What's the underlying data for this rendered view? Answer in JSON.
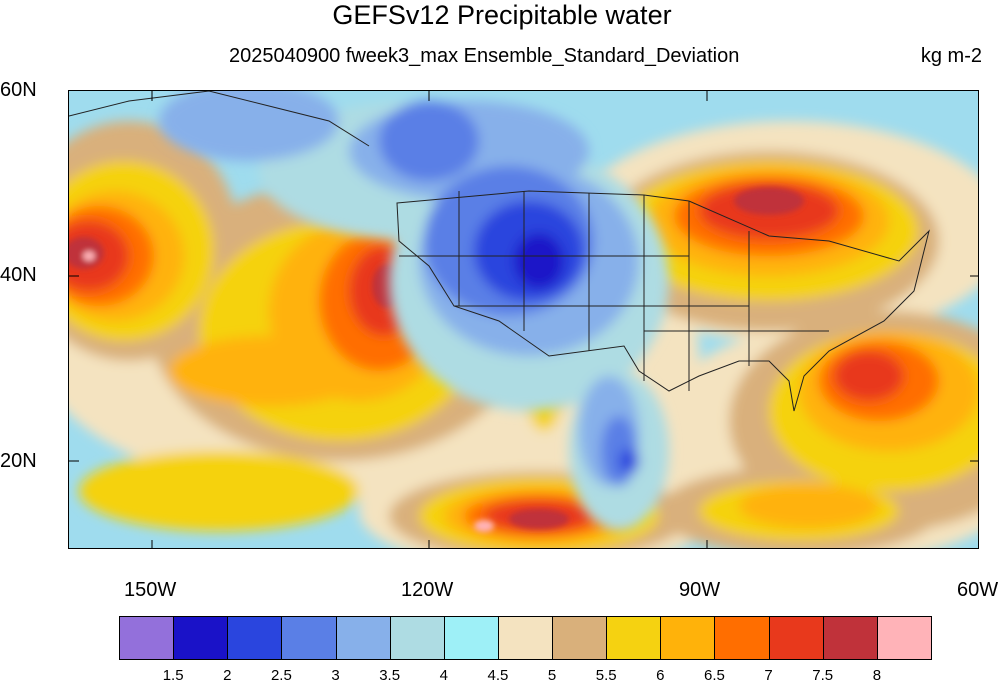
{
  "title": "GEFSv12 Precipitable water",
  "subtitle": "2025040900 fweek3_max Ensemble_Standard_Deviation",
  "units": "kg m-2",
  "lat_labels": [
    "60N",
    "40N",
    "20N"
  ],
  "lon_labels": [
    "150W",
    "120W",
    "90W",
    "60W"
  ],
  "colorbar": {
    "colors": [
      "#9370db",
      "#1a12c8",
      "#2a45de",
      "#5a7fe6",
      "#87b0ea",
      "#aedce3",
      "#9ef0f7",
      "#f4e3c0",
      "#d9b07b",
      "#f5d211",
      "#ffb20a",
      "#ff6e00",
      "#e8391c",
      "#c0323a",
      "#ffb3b8"
    ],
    "labels": [
      "1.5",
      "2",
      "2.5",
      "3",
      "3.5",
      "4",
      "4.5",
      "5",
      "5.5",
      "6",
      "6.5",
      "7",
      "7.5",
      "8"
    ]
  },
  "colors": {
    "background": "#ffffff",
    "land_low": "#2a45de",
    "land_mid": "#87b0ea",
    "warm_high": "#e8391c"
  }
}
